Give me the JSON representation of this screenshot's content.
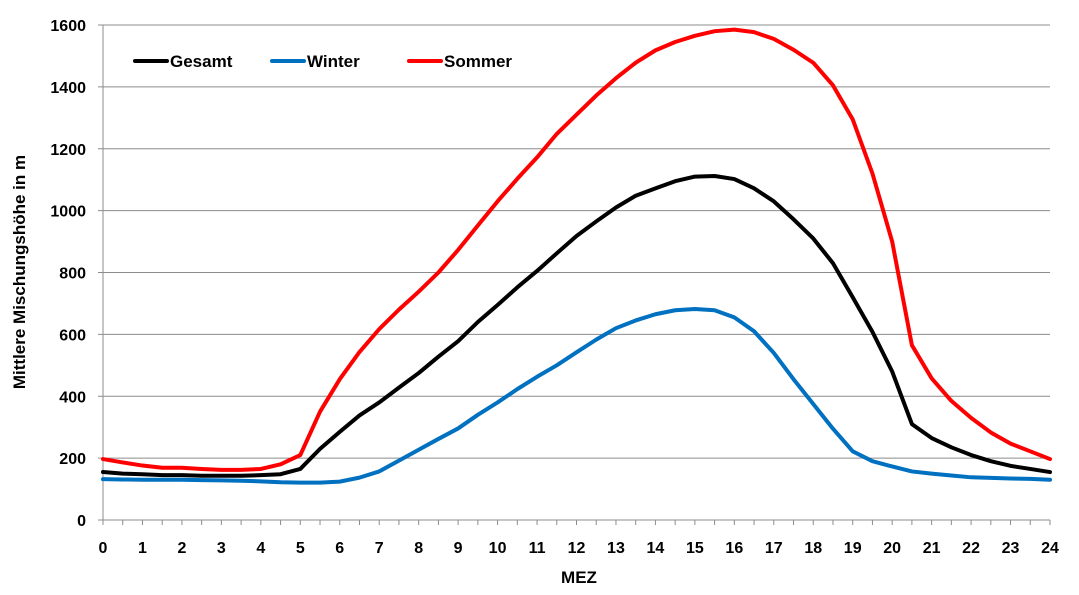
{
  "chart_data": {
    "type": "line",
    "xlabel": "MEZ",
    "ylabel": "Mittlere Mischungshöhe in m",
    "xlim": [
      0,
      24
    ],
    "ylim": [
      0,
      1600
    ],
    "xticks": [
      "0",
      "1",
      "2",
      "3",
      "4",
      "5",
      "6",
      "7",
      "8",
      "9",
      "10",
      "11",
      "12",
      "13",
      "14",
      "15",
      "16",
      "17",
      "18",
      "19",
      "20",
      "21",
      "22",
      "23",
      "24"
    ],
    "yticks": [
      "0",
      "200",
      "400",
      "600",
      "800",
      "1000",
      "1200",
      "1400",
      "1600"
    ],
    "grid": "horizontal",
    "legend_position": "top-left",
    "x": [
      0,
      0.5,
      1,
      1.5,
      2,
      2.5,
      3,
      3.5,
      4,
      4.5,
      5,
      5.5,
      6,
      6.5,
      7,
      7.5,
      8,
      8.5,
      9,
      9.5,
      10,
      10.5,
      11,
      11.5,
      12,
      12.5,
      13,
      13.5,
      14,
      14.5,
      15,
      15.5,
      16,
      16.5,
      17,
      17.5,
      18,
      18.5,
      19,
      19.5,
      20,
      20.5,
      21,
      21.5,
      22,
      22.5,
      23,
      23.5,
      24
    ],
    "series": [
      {
        "name": "Gesamt",
        "color": "#000000",
        "values": [
          155,
          150,
          148,
          145,
          145,
          143,
          143,
          143,
          145,
          148,
          165,
          230,
          285,
          338,
          380,
          428,
          475,
          528,
          578,
          640,
          695,
          752,
          805,
          862,
          918,
          965,
          1010,
          1048,
          1072,
          1095,
          1110,
          1112,
          1102,
          1072,
          1030,
          972,
          910,
          830,
          720,
          608,
          480,
          310,
          265,
          235,
          210,
          190,
          175,
          165,
          155
        ]
      },
      {
        "name": "Winter",
        "color": "#0070C0",
        "values": [
          132,
          131,
          130,
          130,
          130,
          129,
          128,
          127,
          125,
          122,
          121,
          121,
          124,
          137,
          157,
          192,
          227,
          262,
          296,
          340,
          380,
          423,
          463,
          500,
          542,
          583,
          620,
          645,
          665,
          678,
          682,
          678,
          655,
          610,
          540,
          455,
          375,
          295,
          222,
          190,
          173,
          157,
          150,
          144,
          138,
          136,
          134,
          133,
          130
        ]
      },
      {
        "name": "Sommer",
        "color": "#FF0000",
        "values": [
          197,
          186,
          176,
          169,
          169,
          165,
          162,
          162,
          165,
          180,
          210,
          350,
          455,
          543,
          617,
          680,
          738,
          800,
          873,
          952,
          1030,
          1103,
          1172,
          1248,
          1310,
          1372,
          1428,
          1478,
          1518,
          1545,
          1565,
          1580,
          1585,
          1577,
          1555,
          1520,
          1478,
          1405,
          1295,
          1120,
          900,
          565,
          458,
          385,
          330,
          283,
          247,
          222,
          197
        ]
      }
    ]
  }
}
